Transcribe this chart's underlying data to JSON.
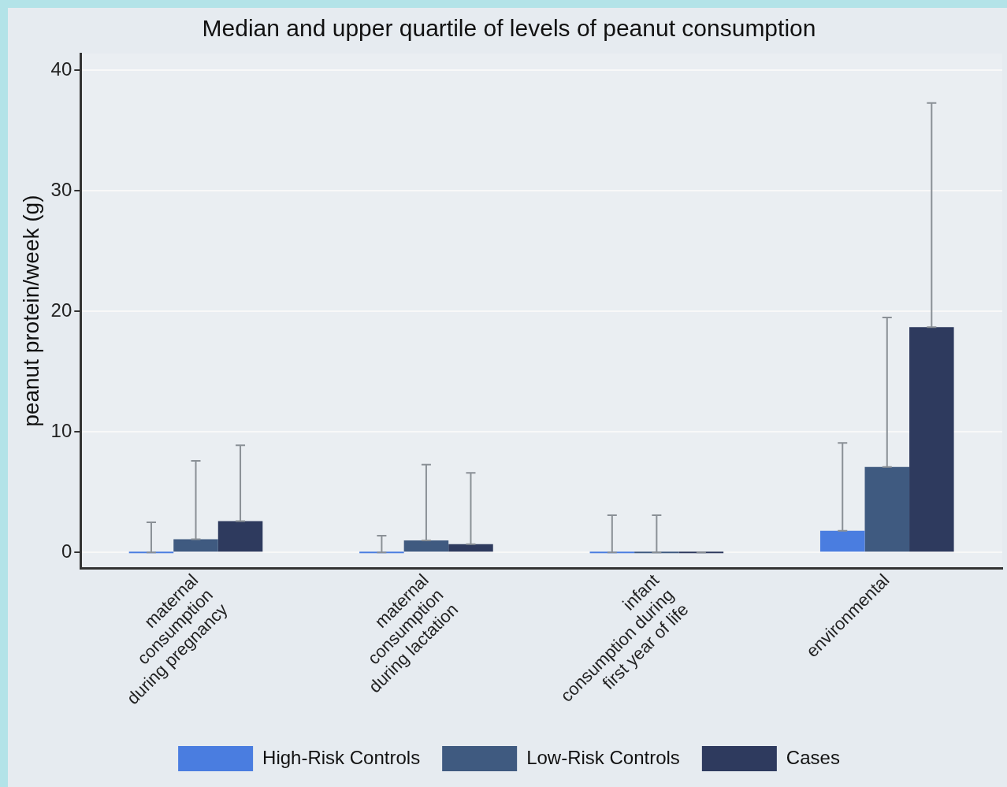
{
  "chart_data": {
    "type": "bar",
    "title": "Median and upper quartile of levels of peanut consumption",
    "ylabel": "peanut protein/week (g)",
    "categories": [
      "maternal\nconsumption\nduring pregnancy",
      "maternal\nconsumption\nduring lactation",
      "infant\nconsumption during\nfirst year of life",
      "environmental"
    ],
    "series": [
      {
        "name": "High-Risk Controls",
        "color": "#4a7de0",
        "values": [
          0,
          0,
          0,
          1.8
        ],
        "errors": [
          [
            0,
            2.5
          ],
          [
            0,
            1.4
          ],
          [
            0,
            3.1
          ],
          [
            1.8,
            9.1
          ]
        ]
      },
      {
        "name": "Low-Risk Controls",
        "color": "#3f5a80",
        "values": [
          1.1,
          1.0,
          0,
          7.1
        ],
        "errors": [
          [
            1.1,
            7.6
          ],
          [
            1.0,
            7.3
          ],
          [
            0,
            3.1
          ],
          [
            7.1,
            19.5
          ]
        ]
      },
      {
        "name": "Cases",
        "color": "#2e3a5e",
        "values": [
          2.6,
          0.7,
          0,
          18.7
        ],
        "errors": [
          [
            2.6,
            8.9
          ],
          [
            0.7,
            6.6
          ],
          [
            0,
            0
          ],
          [
            18.7,
            37.3
          ]
        ]
      }
    ],
    "ylim": [
      -1.3,
      41.4
    ],
    "yticks": [
      0,
      10,
      20,
      30,
      40
    ],
    "grid": "y",
    "legend": "bottom"
  }
}
